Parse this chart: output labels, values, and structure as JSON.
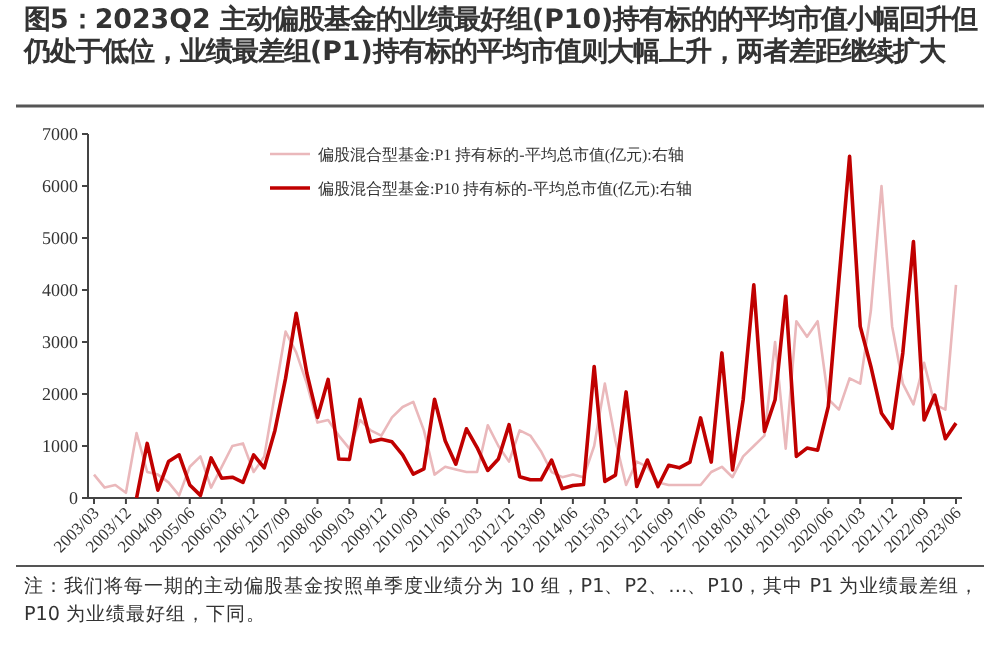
{
  "chart_data": {
    "type": "line",
    "title": "图5：2023Q2 主动偏股基金的业绩最好组(P10)持有标的的平均市值小幅回升但仍处于低位，业绩最差组(P1)持有标的平均市值则大幅上升，两者差距继续扩大",
    "categories": [
      "2003/03",
      null,
      null,
      "2003/12",
      null,
      null,
      "2004/09",
      null,
      null,
      "2005/06",
      null,
      null,
      "2006/03",
      null,
      null,
      "2006/12",
      null,
      null,
      "2007/09",
      null,
      null,
      "2008/06",
      null,
      null,
      "2009/03",
      null,
      null,
      "2009/12",
      null,
      null,
      "2010/09",
      null,
      null,
      "2011/06",
      null,
      null,
      "2012/03",
      null,
      null,
      "2012/12",
      null,
      null,
      "2013/09",
      null,
      null,
      "2014/06",
      null,
      null,
      "2015/03",
      null,
      null,
      "2015/12",
      null,
      null,
      "2016/09",
      null,
      null,
      "2017/06",
      null,
      null,
      "2018/03",
      null,
      null,
      "2018/12",
      null,
      null,
      "2019/09",
      null,
      null,
      "2020/06",
      null,
      null,
      "2021/03",
      null,
      null,
      "2021/12",
      null,
      null,
      "2022/09",
      null,
      null,
      "2023/06"
    ],
    "series": [
      {
        "name": "偏股混合型基金:P1 持有标的-平均总市值(亿元):右轴",
        "color": "#eab8bb",
        "values": [
          450,
          200,
          250,
          100,
          1250,
          500,
          450,
          300,
          50,
          600,
          800,
          200,
          600,
          1000,
          1050,
          500,
          800,
          2000,
          3200,
          2800,
          2200,
          1450,
          1500,
          1200,
          950,
          1500,
          1300,
          1200,
          1550,
          1750,
          1850,
          1300,
          450,
          600,
          550,
          500,
          500,
          1400,
          1000,
          700,
          1300,
          1200,
          900,
          500,
          400,
          450,
          400,
          1000,
          2200,
          1100,
          250,
          700,
          600,
          300,
          250,
          250,
          250,
          250,
          500,
          600,
          400,
          800,
          1000,
          1200,
          3000,
          950,
          3400,
          3100,
          3400,
          1900,
          1700,
          2300,
          2200,
          3600,
          6000,
          3300,
          2200,
          1800,
          2600,
          1800,
          1700,
          4100
        ]
      },
      {
        "name": "偏股混合型基金:P10 持有标的-平均总市值(亿元):右轴",
        "color": "#c00000",
        "values": [
          null,
          null,
          null,
          null,
          0,
          1050,
          150,
          700,
          830,
          250,
          50,
          770,
          380,
          400,
          300,
          830,
          580,
          1300,
          2300,
          3550,
          2400,
          1550,
          2280,
          750,
          740,
          1900,
          1080,
          1130,
          1080,
          830,
          460,
          560,
          1900,
          1100,
          650,
          1330,
          970,
          530,
          750,
          1410,
          410,
          350,
          350,
          730,
          180,
          240,
          260,
          2530,
          320,
          440,
          2040,
          220,
          730,
          220,
          630,
          580,
          690,
          1540,
          690,
          2790,
          540,
          1890,
          4100,
          1280,
          1890,
          3880,
          800,
          960,
          920,
          1760,
          4200,
          6570,
          3300,
          2530,
          1630,
          1340,
          2790,
          4930,
          1500,
          1980,
          1140,
          1440
        ]
      }
    ],
    "ylim": [
      0,
      7000
    ],
    "yticks": [
      0,
      1000,
      2000,
      3000,
      4000,
      5000,
      6000,
      7000
    ],
    "grid": false,
    "legend": "top",
    "annotations": [
      "注：我们将每一期的主动偏股基金按照单季度业绩分为 10 组，P1、P2、…、P10，其中 P1 为业绩最差组，P10 为业绩最好组，下同。"
    ]
  }
}
